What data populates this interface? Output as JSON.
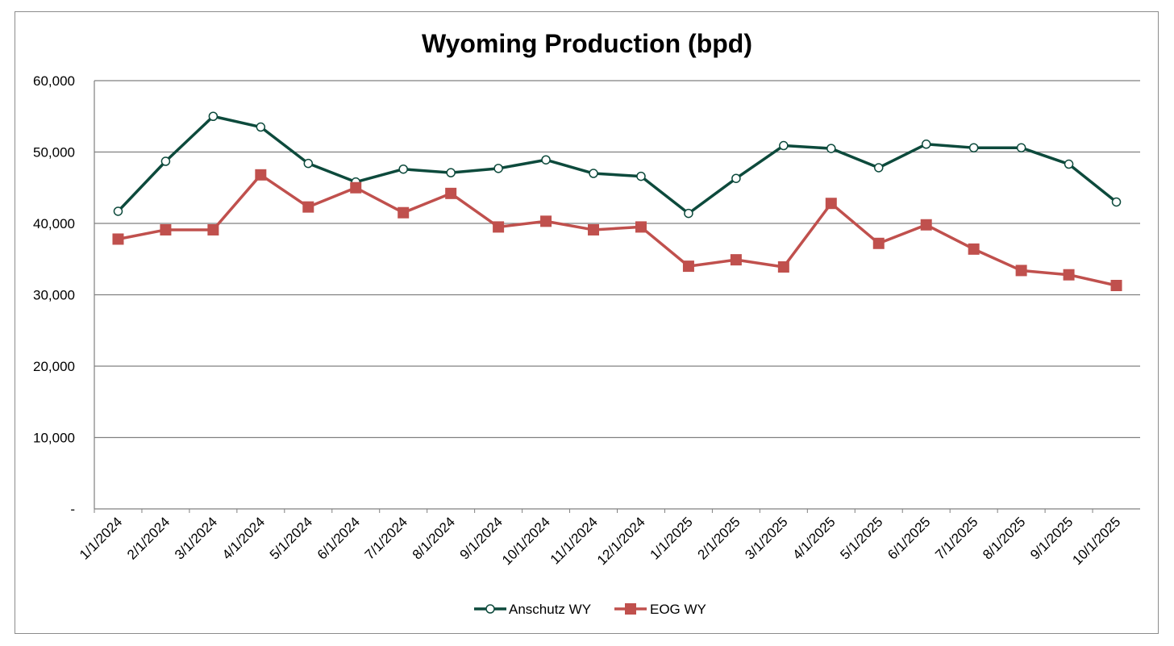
{
  "chart_data": {
    "type": "line",
    "title": "Wyoming Production (bpd)",
    "xlabel": "",
    "ylabel": "",
    "ylim": [
      0,
      60000
    ],
    "ytick_values": [
      0,
      10000,
      20000,
      30000,
      40000,
      50000,
      60000
    ],
    "ytick_labels": [
      "-",
      "10,000",
      "20,000",
      "30,000",
      "40,000",
      "50,000",
      "60,000"
    ],
    "grid": "horizontal",
    "legend_position": "bottom",
    "categories": [
      "1/1/2024",
      "2/1/2024",
      "3/1/2024",
      "4/1/2024",
      "5/1/2024",
      "6/1/2024",
      "7/1/2024",
      "8/1/2024",
      "9/1/2024",
      "10/1/2024",
      "11/1/2024",
      "12/1/2024",
      "1/1/2025",
      "2/1/2025",
      "3/1/2025",
      "4/1/2025",
      "5/1/2025",
      "6/1/2025",
      "7/1/2025",
      "8/1/2025",
      "9/1/2025",
      "10/1/2025"
    ],
    "series": [
      {
        "name": "Anschutz WY",
        "color": "#0d4a3c",
        "marker": "circle",
        "values": [
          41700,
          48700,
          55000,
          53500,
          48400,
          45800,
          47600,
          47100,
          47700,
          48900,
          47000,
          46600,
          41400,
          46300,
          50900,
          50500,
          47800,
          51100,
          50600,
          50600,
          48300,
          43000
        ]
      },
      {
        "name": "EOG WY",
        "color": "#c0504d",
        "marker": "square",
        "values": [
          37800,
          39100,
          39100,
          46800,
          42300,
          45000,
          41500,
          44200,
          39500,
          40300,
          39100,
          39500,
          34000,
          34900,
          33900,
          42800,
          37200,
          39800,
          36400,
          33400,
          32800,
          31300
        ]
      }
    ]
  }
}
